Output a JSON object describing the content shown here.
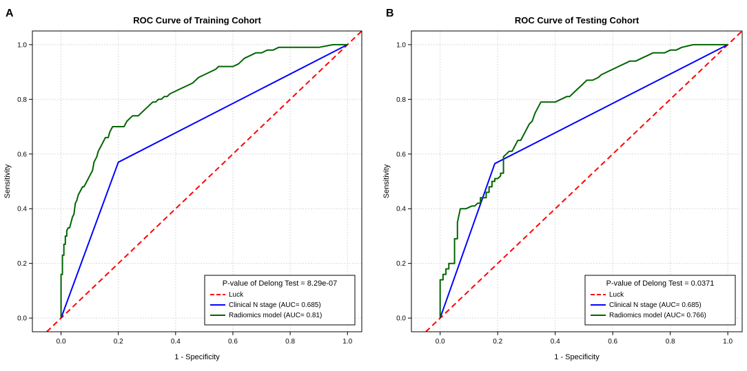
{
  "chart_data": [
    {
      "type": "line",
      "panel": "A",
      "title": "ROC Curve of Training Cohort",
      "xlabel": "1 - Specificity",
      "ylabel": "Sensitivity",
      "xlim": [
        -0.1,
        1.05
      ],
      "ylim": [
        -0.05,
        1.05
      ],
      "xticks": [
        "0.0",
        "0.2",
        "0.4",
        "0.6",
        "0.8",
        "1.0"
      ],
      "yticks": [
        "0.0",
        "0.2",
        "0.4",
        "0.6",
        "0.8",
        "1.0"
      ],
      "grid": true,
      "legend": {
        "title": "P-value of Delong Test = 8.29e-07",
        "placement": "bottom-right",
        "entries": [
          "Luck",
          "Clinical N stage (AUC= 0.685)",
          "Radiomics model (AUC= 0.81)"
        ]
      },
      "series": [
        {
          "name": "Luck",
          "color": "#ff0000",
          "dash": true,
          "x": [
            -0.05,
            1.05
          ],
          "y": [
            -0.05,
            1.05
          ]
        },
        {
          "name": "Clinical N stage",
          "color": "#0000ff",
          "x": [
            0,
            0.2,
            1
          ],
          "y": [
            0,
            0.57,
            1
          ]
        },
        {
          "name": "Radiomics model",
          "color": "#006400",
          "x": [
            0,
            0,
            0.005,
            0.005,
            0.01,
            0.01,
            0.015,
            0.015,
            0.02,
            0.02,
            0.025,
            0.03,
            0.035,
            0.04,
            0.045,
            0.05,
            0.055,
            0.06,
            0.065,
            0.07,
            0.075,
            0.08,
            0.085,
            0.09,
            0.095,
            0.1,
            0.105,
            0.11,
            0.115,
            0.12,
            0.125,
            0.13,
            0.135,
            0.14,
            0.145,
            0.15,
            0.155,
            0.16,
            0.165,
            0.17,
            0.175,
            0.18,
            0.185,
            0.19,
            0.2,
            0.21,
            0.22,
            0.23,
            0.24,
            0.25,
            0.26,
            0.27,
            0.28,
            0.29,
            0.3,
            0.31,
            0.32,
            0.33,
            0.34,
            0.35,
            0.36,
            0.37,
            0.38,
            0.4,
            0.42,
            0.44,
            0.46,
            0.48,
            0.5,
            0.52,
            0.54,
            0.55,
            0.56,
            0.57,
            0.58,
            0.6,
            0.62,
            0.64,
            0.66,
            0.68,
            0.7,
            0.72,
            0.74,
            0.76,
            0.78,
            0.8,
            0.85,
            0.9,
            0.95,
            1.0
          ],
          "y": [
            0,
            0.16,
            0.16,
            0.23,
            0.23,
            0.27,
            0.27,
            0.3,
            0.3,
            0.32,
            0.33,
            0.33,
            0.35,
            0.37,
            0.38,
            0.42,
            0.43,
            0.45,
            0.46,
            0.47,
            0.48,
            0.48,
            0.49,
            0.5,
            0.51,
            0.52,
            0.53,
            0.54,
            0.57,
            0.58,
            0.59,
            0.61,
            0.62,
            0.63,
            0.64,
            0.65,
            0.66,
            0.66,
            0.66,
            0.68,
            0.69,
            0.7,
            0.7,
            0.7,
            0.7,
            0.7,
            0.7,
            0.72,
            0.73,
            0.74,
            0.74,
            0.74,
            0.75,
            0.76,
            0.77,
            0.78,
            0.79,
            0.79,
            0.8,
            0.8,
            0.81,
            0.81,
            0.82,
            0.83,
            0.84,
            0.85,
            0.86,
            0.88,
            0.89,
            0.9,
            0.91,
            0.92,
            0.92,
            0.92,
            0.92,
            0.92,
            0.93,
            0.95,
            0.96,
            0.97,
            0.97,
            0.98,
            0.98,
            0.99,
            0.99,
            0.99,
            0.99,
            0.99,
            1.0,
            1.0
          ]
        }
      ]
    },
    {
      "type": "line",
      "panel": "B",
      "title": "ROC Curve of Testing Cohort",
      "xlabel": "1 - Specificity",
      "ylabel": "Sensitivity",
      "xlim": [
        -0.1,
        1.05
      ],
      "ylim": [
        -0.05,
        1.05
      ],
      "xticks": [
        "0.0",
        "0.2",
        "0.4",
        "0.6",
        "0.8",
        "1.0"
      ],
      "yticks": [
        "0.0",
        "0.2",
        "0.4",
        "0.6",
        "0.8",
        "1.0"
      ],
      "grid": true,
      "legend": {
        "title": "P-value of Delong Test = 0.0371",
        "placement": "bottom-right",
        "entries": [
          "Luck",
          "Clinical N stage (AUC= 0.685)",
          "Radiomics model (AUC= 0.766)"
        ]
      },
      "series": [
        {
          "name": "Luck",
          "color": "#ff0000",
          "dash": true,
          "x": [
            -0.05,
            1.05
          ],
          "y": [
            -0.05,
            1.05
          ]
        },
        {
          "name": "Clinical N stage",
          "color": "#0000ff",
          "x": [
            0,
            0.19,
            1
          ],
          "y": [
            0,
            0.565,
            1
          ]
        },
        {
          "name": "Radiomics model",
          "color": "#006400",
          "x": [
            0,
            0,
            0.01,
            0.01,
            0.02,
            0.02,
            0.03,
            0.03,
            0.05,
            0.05,
            0.06,
            0.06,
            0.07,
            0.09,
            0.11,
            0.12,
            0.13,
            0.14,
            0.14,
            0.16,
            0.16,
            0.17,
            0.17,
            0.18,
            0.18,
            0.19,
            0.19,
            0.2,
            0.21,
            0.21,
            0.22,
            0.22,
            0.23,
            0.24,
            0.25,
            0.26,
            0.27,
            0.28,
            0.29,
            0.3,
            0.31,
            0.32,
            0.33,
            0.34,
            0.35,
            0.36,
            0.4,
            0.42,
            0.44,
            0.45,
            0.46,
            0.47,
            0.48,
            0.49,
            0.5,
            0.51,
            0.52,
            0.53,
            0.55,
            0.56,
            0.58,
            0.6,
            0.62,
            0.64,
            0.66,
            0.68,
            0.7,
            0.72,
            0.74,
            0.76,
            0.78,
            0.8,
            0.82,
            0.84,
            0.88,
            0.92,
            0.96,
            1.0
          ],
          "y": [
            0,
            0.14,
            0.14,
            0.16,
            0.16,
            0.18,
            0.18,
            0.2,
            0.2,
            0.29,
            0.29,
            0.35,
            0.4,
            0.4,
            0.41,
            0.41,
            0.42,
            0.42,
            0.44,
            0.44,
            0.46,
            0.46,
            0.48,
            0.48,
            0.5,
            0.5,
            0.51,
            0.51,
            0.52,
            0.53,
            0.53,
            0.59,
            0.6,
            0.61,
            0.61,
            0.63,
            0.65,
            0.65,
            0.67,
            0.69,
            0.71,
            0.72,
            0.75,
            0.77,
            0.79,
            0.79,
            0.79,
            0.8,
            0.81,
            0.81,
            0.82,
            0.83,
            0.84,
            0.85,
            0.86,
            0.87,
            0.87,
            0.87,
            0.88,
            0.89,
            0.9,
            0.91,
            0.92,
            0.93,
            0.94,
            0.94,
            0.95,
            0.96,
            0.97,
            0.97,
            0.97,
            0.98,
            0.98,
            0.99,
            1.0,
            1.0,
            1.0,
            1.0
          ]
        }
      ]
    }
  ]
}
